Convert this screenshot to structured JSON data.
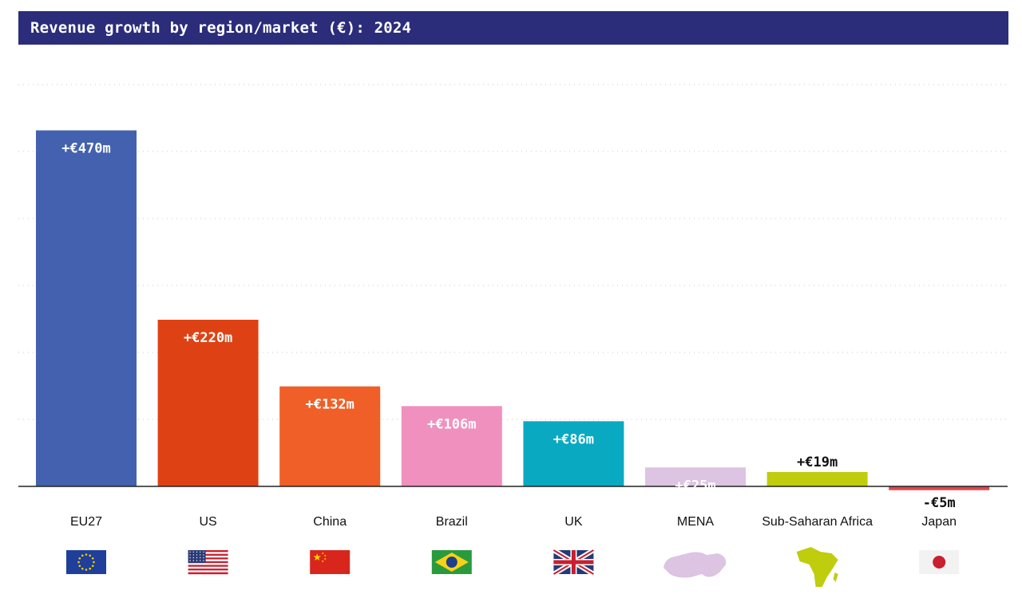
{
  "chart_data": {
    "type": "bar",
    "title": "Revenue growth by region/market (€): 2024",
    "unit": "€m",
    "categories": [
      "EU27",
      "US",
      "China",
      "Brazil",
      "UK",
      "MENA",
      "Sub-Saharan Africa",
      "Japan"
    ],
    "values": [
      470,
      220,
      132,
      106,
      86,
      25,
      19,
      -5
    ],
    "value_labels": [
      "+€470m",
      "+€220m",
      "+€132m",
      "+€106m",
      "+€86m",
      "+€25m",
      "+€19m",
      "-€5m"
    ],
    "colors": [
      "#4361ae",
      "#de4214",
      "#ef5f27",
      "#f090bf",
      "#0aa9c2",
      "#dcc4e2",
      "#bfcd0c",
      "#e6454b"
    ],
    "label_colors": [
      "#ffffff",
      "#ffffff",
      "#ffffff",
      "#ffffff",
      "#ffffff",
      "#ffffff",
      "#111111",
      "#111111"
    ],
    "label_inside": [
      true,
      true,
      true,
      true,
      true,
      true,
      false,
      false
    ],
    "icons": [
      "eu-flag-icon",
      "us-flag-icon",
      "china-flag-icon",
      "brazil-flag-icon",
      "uk-flag-icon",
      "mena-map-icon",
      "sub-saharan-africa-map-icon",
      "japan-flag-icon"
    ],
    "ylim": [
      0,
      500
    ],
    "grid": "dotted-horizontal",
    "xlabel": "",
    "ylabel": ""
  },
  "colors": {
    "title_bar": "#2b2d7a",
    "title_text": "#ffffff",
    "baseline": "#222222",
    "grid": "#c8c8c8"
  }
}
